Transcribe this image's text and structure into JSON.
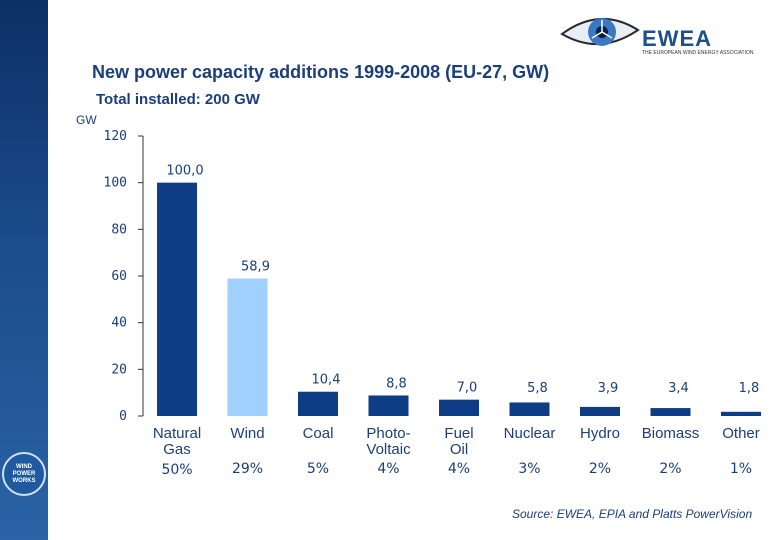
{
  "brand": {
    "name": "EWEA",
    "tagline": "THE EUROPEAN WIND ENERGY ASSOCIATION",
    "sidebar_logo_lines": [
      "WIND",
      "POWER",
      "WORKS"
    ]
  },
  "colors": {
    "bar": "#0e3d86",
    "bar_highlight": "#9fd0ff",
    "text": "#1b3f7a",
    "axis": "#333333"
  },
  "chart_data": {
    "type": "bar",
    "title": "New power capacity additions 1999-2008 (EU-27, GW)",
    "subtitle": "Total installed: 200 GW",
    "ylabel": "GW",
    "ylim": [
      0,
      120
    ],
    "yticks": [
      0,
      20,
      40,
      60,
      80,
      100,
      120
    ],
    "categories": [
      [
        "Natural",
        "Gas"
      ],
      [
        "Wind"
      ],
      [
        "Coal"
      ],
      [
        "Photo-",
        "Voltaic"
      ],
      [
        "Fuel",
        "Oil"
      ],
      [
        "Nuclear"
      ],
      [
        "Hydro"
      ],
      [
        "Biomass"
      ],
      [
        "Other"
      ]
    ],
    "values": [
      100.0,
      58.9,
      10.4,
      8.8,
      7.0,
      5.8,
      3.9,
      3.4,
      1.8
    ],
    "value_labels": [
      "100,0",
      "58,9",
      "10,4",
      "8,8",
      "7,0",
      "5,8",
      "3,9",
      "3,4",
      "1,8"
    ],
    "shares": [
      "50%",
      "29%",
      "5%",
      "4%",
      "4%",
      "3%",
      "2%",
      "2%",
      "1%"
    ],
    "highlight_index": 1,
    "source": "Source: EWEA, EPIA and Platts PowerVision"
  }
}
